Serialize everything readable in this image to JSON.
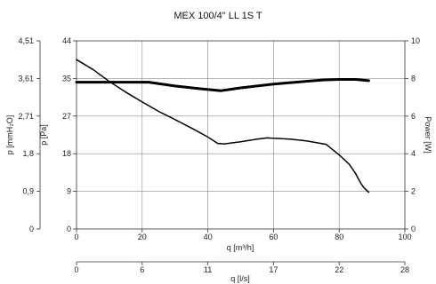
{
  "chart_data": {
    "type": "line",
    "title": "MEX 100/4\" LL 1S T",
    "x_primary": {
      "label": "q [m³/h]",
      "range": [
        0,
        100
      ],
      "ticks": [
        "0",
        "20",
        "40",
        "60",
        "80",
        "100"
      ],
      "tick_values": [
        0,
        20,
        40,
        60,
        80,
        100
      ]
    },
    "x_secondary": {
      "label": "q [l/s]",
      "range": [
        0,
        28
      ],
      "ticks": [
        "0",
        "6",
        "11",
        "17",
        "22",
        "28"
      ]
    },
    "y_pressure_pa": {
      "label": "p [Pa]",
      "range": [
        0,
        44
      ],
      "ticks": [
        "0",
        "9",
        "18",
        "27",
        "35",
        "44"
      ]
    },
    "y_pressure_mmh2o": {
      "label": "p [mmH₂O]",
      "range": [
        0,
        4.51
      ],
      "ticks": [
        "0",
        "0,9",
        "1,8",
        "2,71",
        "3,61",
        "4,51"
      ]
    },
    "y_power": {
      "label": "Power [W]",
      "range": [
        0,
        10
      ],
      "ticks": [
        "0",
        "2",
        "4",
        "6",
        "8",
        "10"
      ]
    },
    "grid": true,
    "series": [
      {
        "axis": "y_pressure_pa",
        "line_width": "thin",
        "points": [
          [
            0,
            39.6
          ],
          [
            5,
            37.3
          ],
          [
            10,
            34.5
          ],
          [
            15,
            32.0
          ],
          [
            20,
            29.7
          ],
          [
            25,
            27.5
          ],
          [
            30,
            25.6
          ],
          [
            35,
            23.6
          ],
          [
            40,
            21.5
          ],
          [
            43,
            20.0
          ],
          [
            45,
            19.9
          ],
          [
            50,
            20.4
          ],
          [
            55,
            21.0
          ],
          [
            58,
            21.3
          ],
          [
            65,
            21.0
          ],
          [
            70,
            20.6
          ],
          [
            76,
            19.8
          ],
          [
            80,
            17.3
          ],
          [
            83,
            15.2
          ],
          [
            85,
            13.0
          ],
          [
            86,
            11.5
          ],
          [
            87,
            10.2
          ],
          [
            88,
            9.3
          ],
          [
            89,
            8.6
          ]
        ]
      },
      {
        "axis": "y_power",
        "line_width": "thick",
        "points": [
          [
            0,
            7.8
          ],
          [
            10,
            7.8
          ],
          [
            22,
            7.8
          ],
          [
            30,
            7.6
          ],
          [
            38,
            7.45
          ],
          [
            44,
            7.35
          ],
          [
            50,
            7.5
          ],
          [
            60,
            7.7
          ],
          [
            70,
            7.85
          ],
          [
            75,
            7.92
          ],
          [
            80,
            7.95
          ],
          [
            85,
            7.95
          ],
          [
            89,
            7.88
          ]
        ]
      }
    ]
  }
}
